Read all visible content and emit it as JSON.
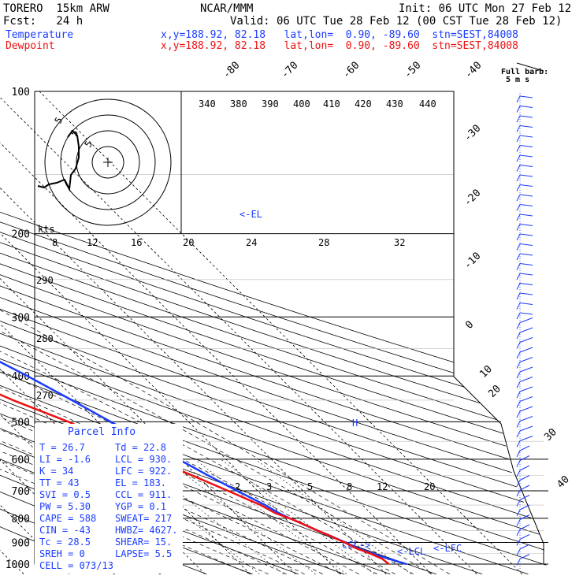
{
  "header": {
    "model": "TORERO  15km ARW",
    "center": "NCAR/MMM",
    "init": "Init: 06 UTC Mon 27 Feb 12",
    "fcst": "Fcst:   24 h",
    "valid": "Valid: 06 UTC Tue 28 Feb 12 (00 CST Tue 28 Feb 12)",
    "temp_label": "Temperature",
    "temp_info": "x,y=188.92, 82.18   lat,lon=  0.90, -89.60  stn=SEST,84008",
    "dew_label": "Dewpoint",
    "dew_info": "x,y=188.92, 82.18   lat,lon=  0.90, -89.60  stn=SEST,84008"
  },
  "barb_legend": {
    "line1": "Full barb:",
    "line2": "5 m s"
  },
  "hodograph": {
    "units": "kts",
    "ring_label": "5"
  },
  "chart_data": {
    "type": "line",
    "title": "",
    "xlabel": "",
    "ylabel": "",
    "pressure_ticks": [
      100,
      200,
      300,
      400,
      500,
      600,
      700,
      800,
      900,
      1000
    ],
    "pressure_labels": [
      "100",
      "200",
      "300",
      "400",
      "500",
      "600",
      "700",
      "800",
      "900",
      "1000"
    ],
    "isotherm_labels_top": [
      "-80",
      "-70",
      "-60",
      "-50",
      "-40"
    ],
    "isotherm_labels_right": [
      "-30",
      "-20",
      "-10",
      "0",
      "10",
      "20",
      "30",
      "40"
    ],
    "theta_e_labels": [
      "340",
      "380",
      "390",
      "400",
      "410",
      "420",
      "430",
      "440"
    ],
    "theta_labels": [
      "290",
      "280",
      "270"
    ],
    "mixing_ratio_labels": [
      "8",
      "12",
      "16",
      "20",
      "24",
      "28",
      "32"
    ],
    "mixing_ratio_low_labels": [
      "2",
      "3",
      "5",
      "8",
      "12",
      "20"
    ],
    "annotations": [
      "<-EL",
      "<-LCL",
      "<-LFC",
      "CCL->",
      "H"
    ],
    "series": [
      {
        "name": "Temperature",
        "color": "#1a3cff",
        "p": [
          1000,
          975,
          950,
          925,
          900,
          870,
          850,
          820,
          800,
          780,
          750,
          700,
          650,
          600,
          550,
          500,
          450,
          400,
          370,
          350,
          300,
          250,
          230,
          200,
          170,
          150,
          130,
          115,
          100
        ],
        "t": [
          26.7,
          24.0,
          21.5,
          19.5,
          18.0,
          16.0,
          14.5,
          12.5,
          11.0,
          9.8,
          8.5,
          5.5,
          2.5,
          -0.5,
          -3.7,
          -7.2,
          -11.0,
          -15.5,
          -18.8,
          -21.5,
          -29.5,
          -38.5,
          -44.0,
          -53.0,
          -62.0,
          -70.0,
          -76.0,
          -76.5,
          -75.0
        ]
      },
      {
        "name": "Dewpoint",
        "color": "#ee1111",
        "p": [
          1000,
          975,
          950,
          925,
          900,
          870,
          850,
          820,
          800,
          780,
          750,
          700,
          650,
          600,
          550,
          500,
          450,
          400,
          370,
          350,
          320,
          300,
          280,
          250,
          220,
          200,
          180,
          160,
          140,
          120,
          100
        ],
        "t": [
          22.8,
          22.5,
          21.0,
          19.0,
          17.8,
          16.0,
          14.5,
          12.5,
          11.0,
          9.0,
          7.5,
          3.5,
          -1.0,
          -6.0,
          -11.5,
          -16.5,
          -24.0,
          -31.0,
          -37.0,
          -40.5,
          -47.0,
          -45.0,
          -44.0,
          -55.0,
          -64.0,
          -72.0,
          -74.0,
          -77.0,
          -81.0,
          -84.0,
          -85.0
        ]
      }
    ]
  },
  "parcel_info": {
    "title": "Parcel Info",
    "rows": [
      {
        "a": "T  =    26.7",
        "b": "Td =  22.8"
      },
      {
        "a": "LI =    -1.6",
        "b": "LCL =  930."
      },
      {
        "a": "K  =      34",
        "b": "LFC =  922."
      },
      {
        "a": "TT =      43",
        "b": "EL  =  183."
      },
      {
        "a": "SVI =    0.5",
        "b": "CCL =  911."
      },
      {
        "a": "PW =    5.30",
        "b": "YGP =   0.1"
      },
      {
        "a": "CAPE =   588",
        "b": "SWEAT=  217"
      },
      {
        "a": "CIN =    -43",
        "b": "HWBZ= 4627."
      },
      {
        "a": "Tc =    28.5",
        "b": "SHEAR=  15."
      },
      {
        "a": "SREH =     0",
        "b": "LAPSE=  5.5"
      },
      {
        "a": "CELL = 073/13",
        "b": ""
      }
    ]
  },
  "colors": {
    "temperature": "#1a3cff",
    "dewpoint": "#ee1111",
    "grid": "#000000"
  }
}
